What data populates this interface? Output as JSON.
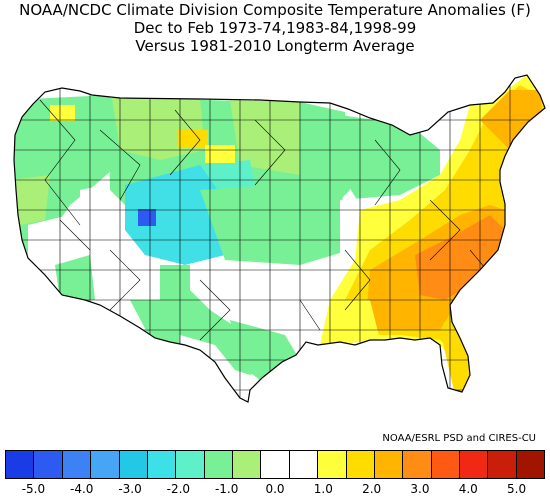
{
  "header": {
    "line1": "NOAA/NCDC Climate Division Composite Temperature Anomalies (F)",
    "line2": "Dec to Feb  1973-74,1983-84,1998-99",
    "line3": "Versus 1981-2010 Longterm Average"
  },
  "credit": "NOAA/ESRL PSD and CIRES-CU",
  "legend": {
    "colors": [
      "#1a3ce6",
      "#2d5af0",
      "#3c82f5",
      "#46a5f5",
      "#23c8e6",
      "#3ce0e6",
      "#5ef0c8",
      "#78f096",
      "#aaf078",
      "#ffffff",
      "#ffffff",
      "#ffff3c",
      "#ffdc00",
      "#ffb400",
      "#ff8c14",
      "#ff5a14",
      "#f02814",
      "#c81e0a",
      "#a01400"
    ],
    "ticks": [
      "-5.0",
      "-4.0",
      "-3.0",
      "-2.0",
      "-1.0",
      "0.0",
      "1.0",
      "2.0",
      "3.0",
      "4.0",
      "5.0"
    ]
  },
  "map": {
    "anomaly_colors": {
      "cyan": "#40e0e6",
      "aquamarine": "#5ef0c8",
      "light_green": "#78f096",
      "yellow_green": "#aaf078",
      "blue": "#2d5af0",
      "white": "#ffffff",
      "yellow": "#ffff3c",
      "gold": "#ffdc00",
      "light_orange": "#ffb400",
      "orange": "#ff8c14"
    }
  }
}
